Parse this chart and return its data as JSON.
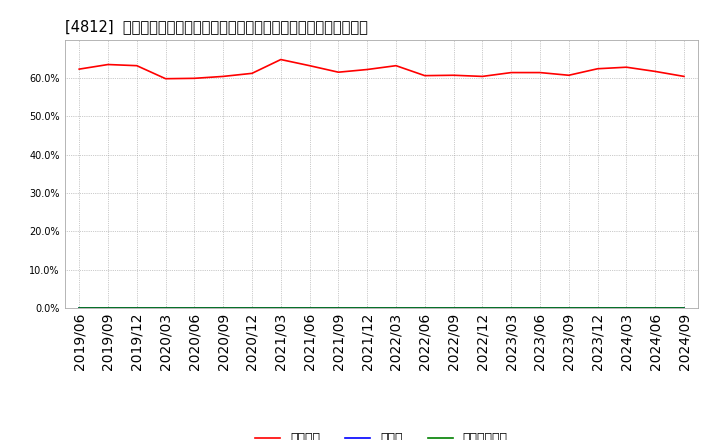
{
  "title": "[4812]  自己資本、のれん、繰延税金資産の総資産に対する比率の推移",
  "x_labels": [
    "2019/06",
    "2019/09",
    "2019/12",
    "2020/03",
    "2020/06",
    "2020/09",
    "2020/12",
    "2021/03",
    "2021/06",
    "2021/09",
    "2021/12",
    "2022/03",
    "2022/06",
    "2022/09",
    "2022/12",
    "2023/03",
    "2023/06",
    "2023/09",
    "2023/12",
    "2024/03",
    "2024/06",
    "2024/09"
  ],
  "jikoshihon": [
    0.623,
    0.635,
    0.632,
    0.598,
    0.599,
    0.604,
    0.612,
    0.648,
    0.632,
    0.615,
    0.622,
    0.632,
    0.606,
    0.607,
    0.604,
    0.614,
    0.614,
    0.607,
    0.624,
    0.628,
    0.617,
    0.604
  ],
  "noren": [
    0,
    0,
    0,
    0,
    0,
    0,
    0,
    0,
    0,
    0,
    0,
    0,
    0,
    0,
    0,
    0,
    0,
    0,
    0,
    0,
    0,
    0
  ],
  "kuenzeichikin": [
    0,
    0,
    0,
    0,
    0,
    0,
    0,
    0,
    0,
    0,
    0,
    0,
    0,
    0,
    0,
    0,
    0,
    0,
    0,
    0,
    0,
    0
  ],
  "jikoshihon_color": "#ff0000",
  "noren_color": "#0000ff",
  "kuenzeichikin_color": "#008000",
  "background_color": "#ffffff",
  "plot_bg_color": "#ffffff",
  "grid_color": "#999999",
  "ylim": [
    0.0,
    0.7
  ],
  "yticks": [
    0.0,
    0.1,
    0.2,
    0.3,
    0.4,
    0.5,
    0.6
  ],
  "legend_labels": [
    "自己資本",
    "のれん",
    "繰延税金資産"
  ],
  "title_fontsize": 10.5,
  "tick_fontsize": 7,
  "legend_fontsize": 9
}
